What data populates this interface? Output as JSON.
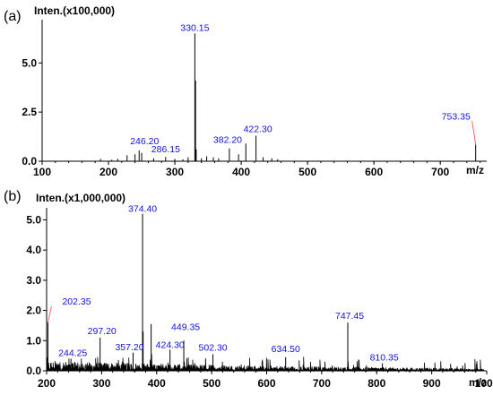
{
  "chart_data": [
    {
      "type": "line",
      "panel_label": "(a)",
      "ylabel": "Inten.(x100,000)",
      "xlabel": "m/z",
      "xlim": [
        100,
        770
      ],
      "ylim": [
        0,
        7.2
      ],
      "xticks": [
        "100",
        "200",
        "300",
        "400",
        "500",
        "600",
        "700"
      ],
      "yticks": [
        "0.0",
        "2.5",
        "5.0"
      ],
      "xtick_values": [
        100,
        200,
        300,
        400,
        500,
        600,
        700
      ],
      "ytick_values": [
        0.0,
        2.5,
        5.0
      ],
      "peaks": [
        {
          "x": 188,
          "y": 0.12
        },
        {
          "x": 205,
          "y": 0.08
        },
        {
          "x": 214,
          "y": 0.12
        },
        {
          "x": 228,
          "y": 0.3
        },
        {
          "x": 240,
          "y": 0.35
        },
        {
          "x": 246.2,
          "y": 0.55
        },
        {
          "x": 250,
          "y": 0.42
        },
        {
          "x": 268,
          "y": 0.15
        },
        {
          "x": 286.15,
          "y": 0.22
        },
        {
          "x": 300,
          "y": 0.12
        },
        {
          "x": 312,
          "y": 0.1
        },
        {
          "x": 320,
          "y": 0.2
        },
        {
          "x": 330.15,
          "y": 6.5
        },
        {
          "x": 331.2,
          "y": 4.1
        },
        {
          "x": 332.2,
          "y": 0.6
        },
        {
          "x": 340,
          "y": 0.15
        },
        {
          "x": 348,
          "y": 0.25
        },
        {
          "x": 358,
          "y": 0.2
        },
        {
          "x": 366,
          "y": 0.15
        },
        {
          "x": 382.2,
          "y": 0.65
        },
        {
          "x": 396,
          "y": 0.35
        },
        {
          "x": 407,
          "y": 0.9
        },
        {
          "x": 422.3,
          "y": 1.3
        },
        {
          "x": 433,
          "y": 0.2
        },
        {
          "x": 446,
          "y": 0.15
        },
        {
          "x": 455,
          "y": 0.1
        },
        {
          "x": 753.35,
          "y": 0.85
        }
      ],
      "annotations": [
        {
          "text": "246.20",
          "x": 246.2,
          "y": 0.55
        },
        {
          "text": "286.15",
          "x": 286.15,
          "y": 0.22
        },
        {
          "text": "330.15",
          "x": 330.15,
          "y": 6.5
        },
        {
          "text": "382.20",
          "x": 382.2,
          "y": 0.65
        },
        {
          "text": "422.30",
          "x": 422.3,
          "y": 1.3
        },
        {
          "text": "753.35",
          "x": 753.35,
          "y": 0.85,
          "leader": true
        }
      ]
    },
    {
      "type": "line",
      "panel_label": "(b)",
      "ylabel": "Inten.(x1,000,000)",
      "xlabel": "m/z",
      "xlim": [
        200,
        1000
      ],
      "ylim": [
        0,
        5.4
      ],
      "xticks": [
        "200",
        "300",
        "400",
        "500",
        "600",
        "700",
        "800",
        "900",
        "1000"
      ],
      "yticks": [
        "0.0",
        "1.0",
        "2.0",
        "3.0",
        "4.0",
        "5.0"
      ],
      "xtick_values": [
        200,
        300,
        400,
        500,
        600,
        700,
        800,
        900,
        1000
      ],
      "ytick_values": [
        0.0,
        1.0,
        2.0,
        3.0,
        4.0,
        5.0
      ],
      "peaks": [
        {
          "x": 202.35,
          "y": 1.6
        },
        {
          "x": 244.25,
          "y": 0.4
        },
        {
          "x": 297.2,
          "y": 1.1
        },
        {
          "x": 357.2,
          "y": 0.6
        },
        {
          "x": 374.4,
          "y": 5.2
        },
        {
          "x": 375.4,
          "y": 1.3
        },
        {
          "x": 390,
          "y": 1.55
        },
        {
          "x": 424.3,
          "y": 0.7
        },
        {
          "x": 449.35,
          "y": 1.0
        },
        {
          "x": 502.3,
          "y": 0.55
        },
        {
          "x": 634.5,
          "y": 0.45
        },
        {
          "x": 747.45,
          "y": 1.6
        },
        {
          "x": 810.35,
          "y": 0.25
        }
      ],
      "annotations": [
        {
          "text": "202.35",
          "x": 202.35,
          "y": 1.6,
          "leader": true
        },
        {
          "text": "244.25",
          "x": 244.25,
          "y": 0.4
        },
        {
          "text": "297.20",
          "x": 297.2,
          "y": 1.1
        },
        {
          "text": "357.20",
          "x": 357.2,
          "y": 0.6
        },
        {
          "text": "374.40",
          "x": 374.4,
          "y": 5.2
        },
        {
          "text": "424.30",
          "x": 424.3,
          "y": 0.7
        },
        {
          "text": "449.35",
          "x": 449.35,
          "y": 1.0
        },
        {
          "text": "502.30",
          "x": 502.3,
          "y": 0.55
        },
        {
          "text": "634.50",
          "x": 634.5,
          "y": 0.45
        },
        {
          "text": "747.45",
          "x": 747.45,
          "y": 1.6
        },
        {
          "text": "810.35",
          "x": 810.35,
          "y": 0.25
        }
      ]
    }
  ]
}
